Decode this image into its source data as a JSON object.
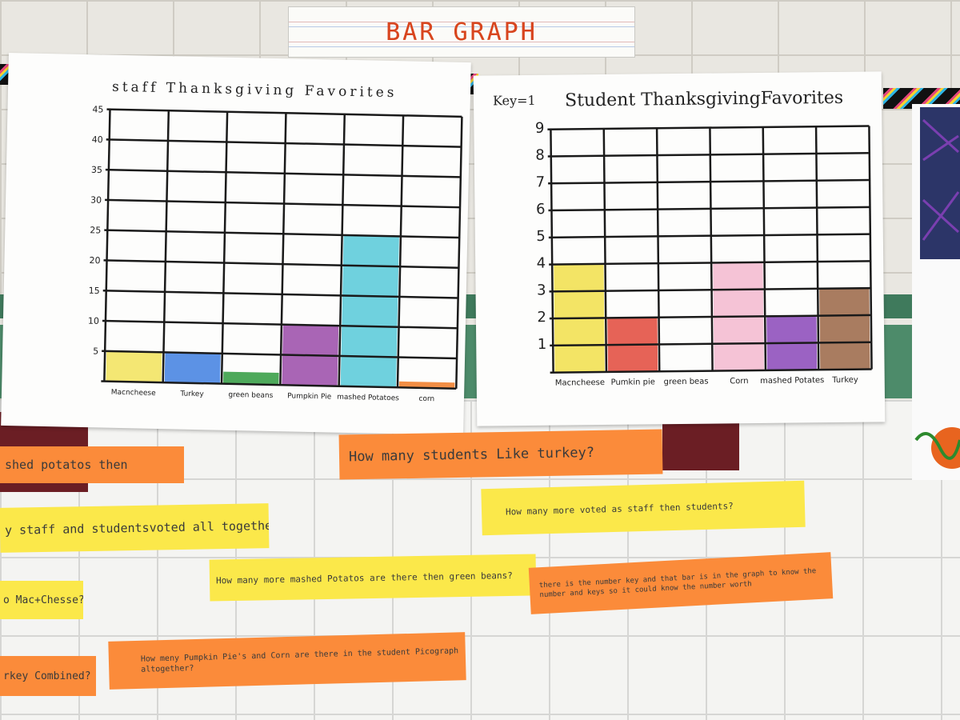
{
  "banner": {
    "title": "BAR GRAPH"
  },
  "chart_data": [
    {
      "type": "bar",
      "title": "staff Thanksgiving Favorites",
      "categories": [
        "Macncheese",
        "Turkey",
        "green beans",
        "Pumpkin Pie",
        "mashed Potatoes",
        "corn"
      ],
      "values": [
        5,
        5,
        2,
        10,
        25,
        1
      ],
      "ytick_labels": [
        "5",
        "10",
        "15",
        "20",
        "25",
        "30",
        "35",
        "40",
        "45"
      ],
      "ylim": [
        0,
        45
      ],
      "colors": [
        "#f2e35a",
        "#3f7fe0",
        "#2f9a3e",
        "#9a4aa8",
        "#56c9d8",
        "#f07a24"
      ]
    },
    {
      "type": "bar",
      "title": "Student ThanksgivingFavorites",
      "key": "Key=1",
      "categories": [
        "Macncheese",
        "Pumkin pie",
        "green beas",
        "Corn",
        "mashed Potates",
        "Turkey"
      ],
      "values": [
        4,
        2,
        0,
        4,
        2,
        3
      ],
      "ytick_labels": [
        "1",
        "2",
        "3",
        "4",
        "5",
        "6",
        "7",
        "8",
        "9"
      ],
      "ylim": [
        0,
        9
      ],
      "colors": [
        "#f1df4a",
        "#e2483a",
        "#ffffff",
        "#f3b8cf",
        "#8a47b8",
        "#9a6544"
      ]
    }
  ],
  "strips": [
    {
      "text": "shed potatos then",
      "color": "orange"
    },
    {
      "text": "How many students Like turkey?",
      "color": "orange"
    },
    {
      "text": "How many more voted as staff then students?",
      "color": "yellow"
    },
    {
      "text": "y staff and studentsvoted all together.",
      "color": "yellow"
    },
    {
      "text": "How many more mashed Potatos are there then green beans?",
      "color": "yellow"
    },
    {
      "text": "there is the number key and that bar is in the graph to know the number and keys so it could know the number worth",
      "color": "orange"
    },
    {
      "text": "o Mac+Chesse?",
      "color": "yellow"
    },
    {
      "text": "How meny Pumpkin Pie's and Corn are there in the student Picograph altogether?",
      "color": "orange"
    },
    {
      "text": "rkey Combined?",
      "color": "orange"
    }
  ]
}
